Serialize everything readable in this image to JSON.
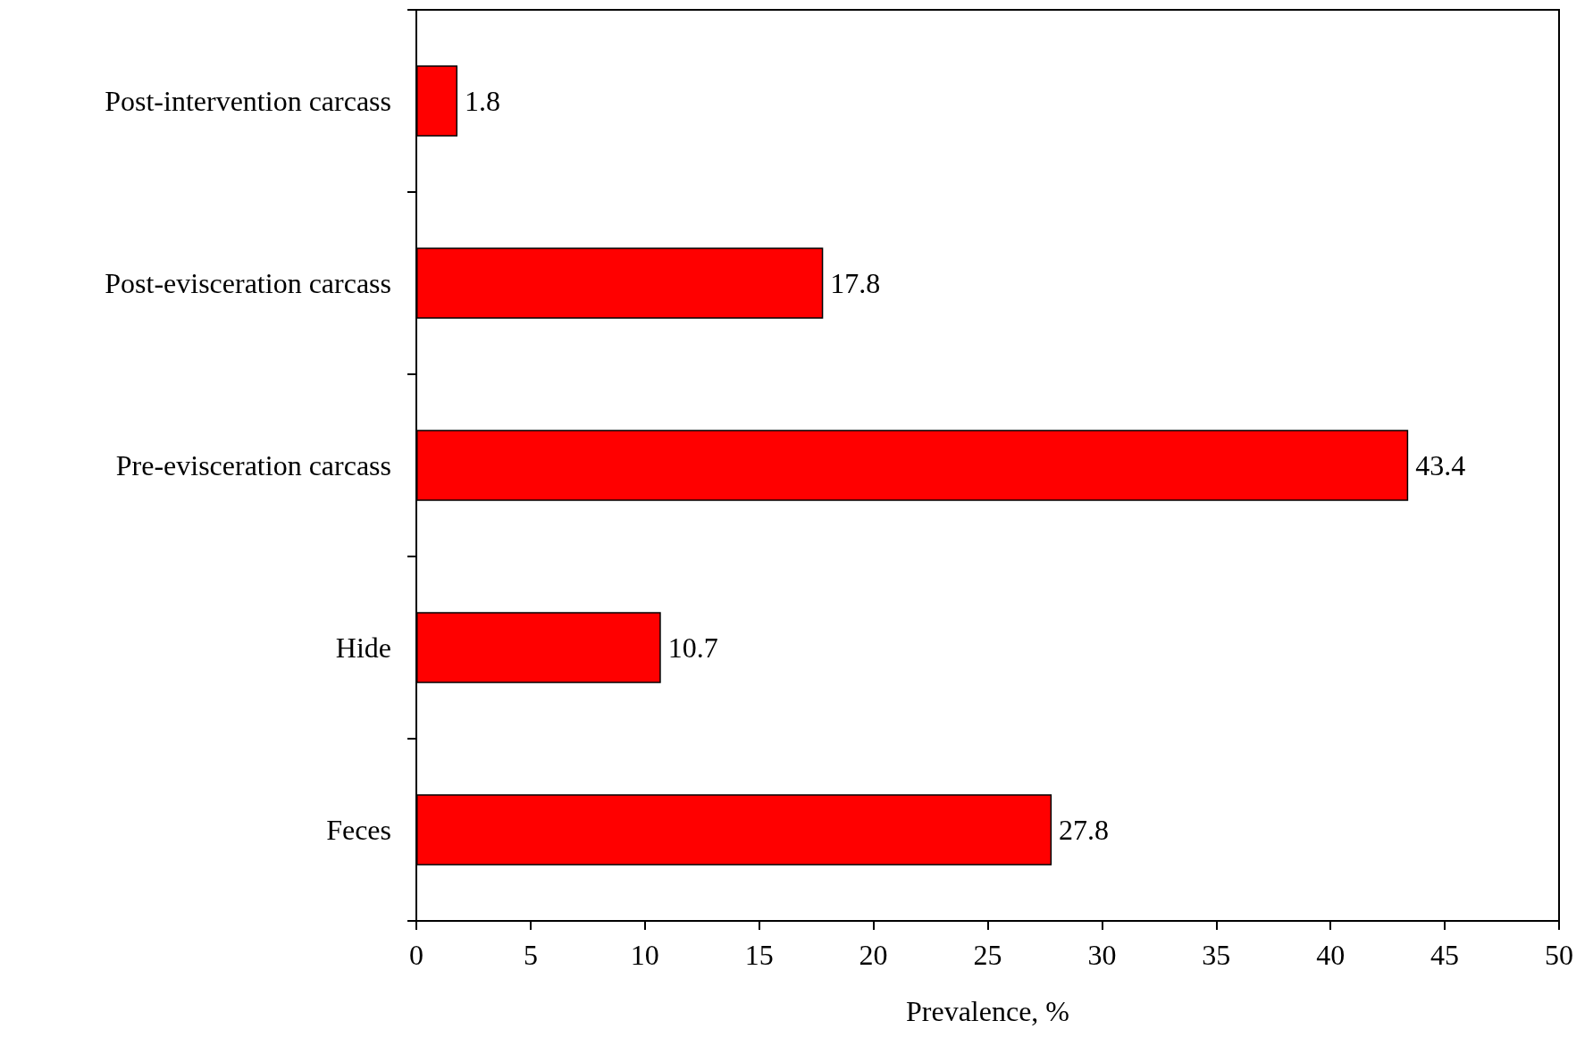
{
  "chart_data": {
    "type": "bar",
    "orientation": "horizontal",
    "categories": [
      "Post-intervention carcass",
      "Post-evisceration carcass",
      "Pre-evisceration carcass",
      "Hide",
      "Feces"
    ],
    "values": [
      1.8,
      17.8,
      43.4,
      10.7,
      27.8
    ],
    "color": "#ff0000",
    "xlabel": "Prevalence, %",
    "xlim": [
      0,
      50
    ],
    "xticks": [
      0,
      5,
      10,
      15,
      20,
      25,
      30,
      35,
      40,
      45,
      50
    ],
    "data_labels": true
  }
}
